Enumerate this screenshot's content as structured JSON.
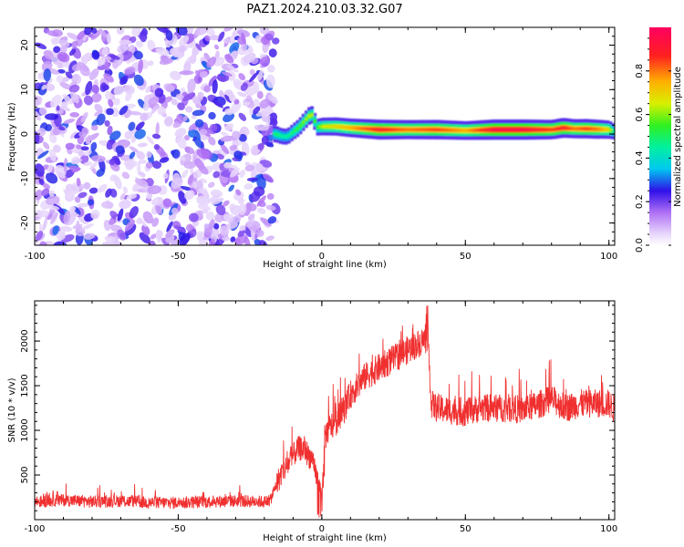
{
  "figure_title": "PAZ1.2024.210.03.32.G07",
  "chart_data": [
    {
      "type": "heatmap",
      "xlabel": "Height of straight line (km)",
      "ylabel": "Frequency (Hz)",
      "xlim": [
        -100,
        102
      ],
      "ylim": [
        -25,
        24
      ],
      "x_ticks": [
        -100,
        -50,
        0,
        50,
        100
      ],
      "y_ticks": [
        -20,
        -10,
        0,
        10,
        20
      ],
      "grid": false,
      "noise_region": {
        "x_range": [
          -100,
          -16
        ],
        "y_range": [
          -25,
          24
        ],
        "amplitude_range": [
          0.05,
          0.3
        ]
      },
      "ridge": {
        "x": [
          -17,
          -16,
          -14,
          -12,
          -10,
          -8,
          -6,
          -4,
          -3,
          -2,
          0,
          5,
          10,
          20,
          30,
          40,
          50,
          60,
          70,
          80,
          84,
          88,
          92,
          96,
          100,
          102
        ],
        "y": [
          0,
          0,
          -0.5,
          -0.6,
          0.5,
          1.5,
          3,
          4.4,
          4.2,
          1.5,
          1.7,
          1.7,
          1.4,
          1.0,
          1.0,
          1.0,
          0.8,
          1.0,
          1.0,
          1.0,
          1.4,
          1.2,
          1.2,
          1.1,
          1.0,
          0.5
        ],
        "amplitude": [
          0.45,
          0.5,
          0.45,
          0.45,
          0.5,
          0.55,
          0.6,
          0.65,
          0.6,
          0.5,
          0.65,
          0.7,
          0.75,
          0.9,
          0.8,
          0.85,
          0.75,
          0.95,
          0.95,
          0.85,
          0.9,
          0.8,
          0.85,
          0.8,
          0.7,
          0.4
        ]
      },
      "colorbar": {
        "label": "Normalized spectral amplitude",
        "range": [
          0.0,
          1.0
        ],
        "ticks": [
          0.0,
          0.2,
          0.4,
          0.6,
          0.8
        ],
        "tick_labels": [
          "0.0",
          "0.2",
          "0.4",
          "0.6",
          "0.8"
        ]
      }
    },
    {
      "type": "line",
      "xlabel": "Height of straight line (km)",
      "ylabel": "SNR (10 * v/v)",
      "xlim": [
        -100,
        102
      ],
      "ylim": [
        0,
        2450
      ],
      "x_ticks": [
        -100,
        -50,
        0,
        50,
        100
      ],
      "y_ticks": [
        500,
        1000,
        1500,
        2000
      ],
      "grid": false,
      "series": [
        {
          "color": "#f03030",
          "x": [
            -100,
            -90,
            -80,
            -70,
            -60,
            -50,
            -40,
            -30,
            -20,
            -18,
            -16,
            -14,
            -12,
            -10,
            -8,
            -6,
            -4,
            -2,
            0,
            1,
            2,
            5,
            8,
            10,
            15,
            20,
            25,
            30,
            35,
            37,
            37.5,
            38,
            40,
            45,
            50,
            55,
            60,
            65,
            70,
            75,
            80,
            85,
            90,
            95,
            100,
            102
          ],
          "y": [
            200,
            220,
            200,
            210,
            190,
            190,
            200,
            210,
            200,
            210,
            380,
            520,
            600,
            720,
            800,
            780,
            700,
            500,
            300,
            900,
            1000,
            1100,
            1250,
            1400,
            1600,
            1700,
            1800,
            1900,
            2000,
            2030,
            1800,
            1300,
            1250,
            1220,
            1200,
            1250,
            1250,
            1250,
            1230,
            1280,
            1350,
            1250,
            1300,
            1300,
            1300,
            1230
          ]
        }
      ]
    }
  ]
}
